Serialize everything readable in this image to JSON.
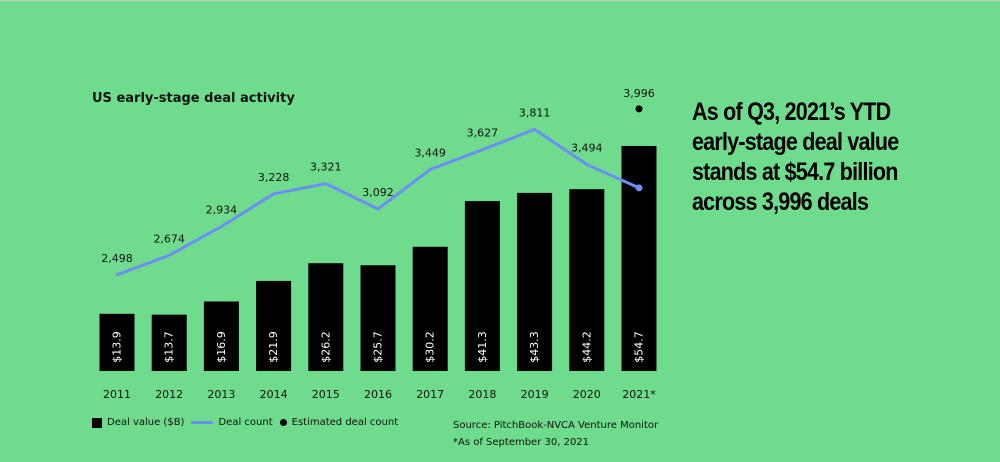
{
  "title": "US early-stage deal activity",
  "headline": "As of Q3, 2021’s YTD early-stage deal value stands at $54.7 billion across 3,996 deals",
  "source": "Source: PitchBook-NVCA Venture Monitor",
  "note": "*As of September 30, 2021",
  "legend": {
    "bar_label": "Deal value ($B)",
    "line_label": "Deal count",
    "dot_label": "Estimated deal count"
  },
  "colors": {
    "background": "#6edc8c",
    "bars": "#000000",
    "line": "#6e8ef5",
    "estimate_dot": "#000000"
  },
  "chart_data": {
    "type": "bar",
    "title": "US early-stage deal activity",
    "categories": [
      "2011",
      "2012",
      "2013",
      "2014",
      "2015",
      "2016",
      "2017",
      "2018",
      "2019",
      "2020",
      "2021*"
    ],
    "series": [
      {
        "name": "Deal value ($B)",
        "type": "bar",
        "values": [
          13.9,
          13.7,
          16.9,
          21.9,
          26.2,
          25.7,
          30.2,
          41.3,
          43.3,
          44.2,
          54.7
        ],
        "labels": [
          "$13.9",
          "$13.7",
          "$16.9",
          "$21.9",
          "$26.2",
          "$25.7",
          "$30.2",
          "$41.3",
          "$43.3",
          "$44.2",
          "$54.7"
        ]
      },
      {
        "name": "Deal count",
        "type": "line",
        "values": [
          2498,
          2674,
          2934,
          3228,
          3321,
          3092,
          3449,
          3627,
          3811,
          3494,
          3283
        ],
        "labels": [
          "2,498",
          "2,674",
          "2,934",
          "3,228",
          "3,321",
          "3,092",
          "3,449",
          "3,627",
          "3,811",
          "3,494",
          ""
        ]
      },
      {
        "name": "Estimated deal count",
        "type": "scatter",
        "values": [
          null,
          null,
          null,
          null,
          null,
          null,
          null,
          null,
          null,
          null,
          3996
        ],
        "labels": [
          "",
          "",
          "",
          "",
          "",
          "",
          "",
          "",
          "",
          "",
          "3,996"
        ]
      }
    ],
    "notes": "Deal count line continues to a blue point for 2021* (YTD); the black dot marks the estimated full-year count 3,996.",
    "grid": false,
    "legend_position": "bottom-left"
  }
}
